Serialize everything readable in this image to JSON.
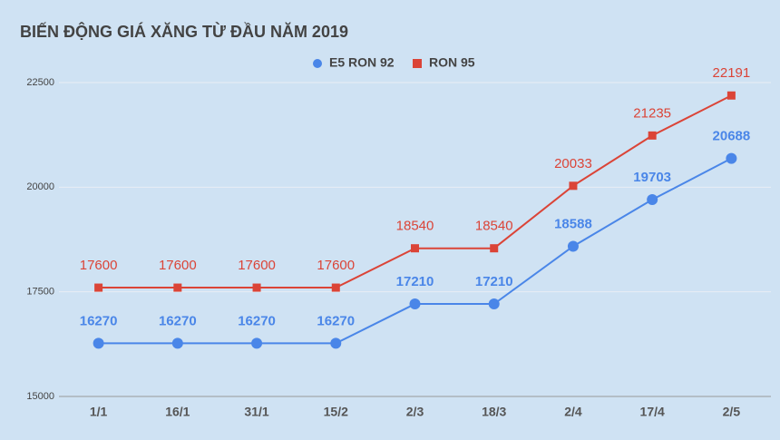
{
  "chart_data": {
    "type": "line",
    "title": "BIẾN ĐỘNG GIÁ XĂNG TỪ ĐẦU NĂM 2019",
    "categories": [
      "1/1",
      "16/1",
      "31/1",
      "15/2",
      "2/3",
      "18/3",
      "2/4",
      "17/4",
      "2/5"
    ],
    "series": [
      {
        "name": "E5 RON 92",
        "color": "#4a86e8",
        "marker": "circle",
        "values": [
          16270,
          16270,
          16270,
          16270,
          17210,
          17210,
          18588,
          19703,
          20688
        ]
      },
      {
        "name": "RON 95",
        "color": "#db4437",
        "marker": "square",
        "values": [
          17600,
          17600,
          17600,
          17600,
          18540,
          18540,
          20033,
          21235,
          22191
        ]
      }
    ],
    "ylim": [
      15000,
      22500
    ],
    "yticks": [
      15000,
      17500,
      20000,
      22500
    ],
    "grid": true,
    "legend": "top"
  }
}
